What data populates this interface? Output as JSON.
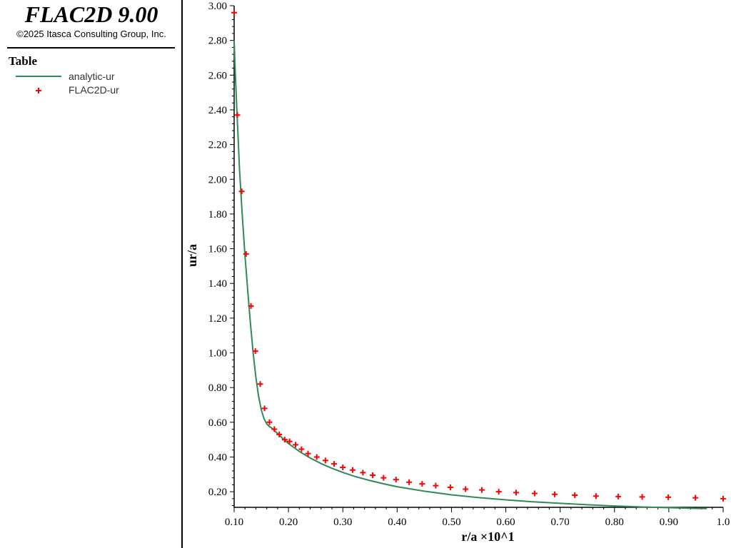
{
  "app": {
    "title": "FLAC2D 9.00",
    "copyright": "©2025 Itasca Consulting Group, Inc."
  },
  "legend": {
    "title": "Table",
    "items": [
      {
        "label": "analytic-ur",
        "type": "line",
        "color": "#2e8b57"
      },
      {
        "label": "FLAC2D-ur",
        "type": "marker",
        "color": "#ff0000"
      }
    ]
  },
  "chart_data": {
    "type": "line",
    "xlabel": "r/a ×10^1",
    "ylabel": "ur/a",
    "xlim": [
      0.1,
      1.0
    ],
    "ylim": [
      0.11,
      3.0
    ],
    "xticks": [
      "0.10",
      "0.20",
      "0.30",
      "0.40",
      "0.50",
      "0.60",
      "0.70",
      "0.80",
      "0.90",
      "1.0"
    ],
    "yticks": [
      "0.20",
      "0.40",
      "0.60",
      "0.80",
      "1.00",
      "1.20",
      "1.40",
      "1.60",
      "1.80",
      "2.00",
      "2.20",
      "2.40",
      "2.60",
      "2.80",
      "3.00"
    ],
    "grid": false,
    "legend_position": "left-panel",
    "series": [
      {
        "name": "analytic-ur",
        "style": "line",
        "color": "#2e8b57",
        "x": [
          0.1,
          0.102,
          0.105,
          0.11,
          0.115,
          0.12,
          0.125,
          0.13,
          0.135,
          0.14,
          0.145,
          0.15,
          0.155,
          0.16,
          0.165,
          0.17,
          0.18,
          0.19,
          0.2,
          0.22,
          0.24,
          0.26,
          0.28,
          0.3,
          0.32,
          0.35,
          0.38,
          0.4,
          0.45,
          0.5,
          0.55,
          0.6,
          0.65,
          0.7,
          0.75,
          0.8,
          0.85,
          0.9,
          0.95,
          0.97
        ],
        "y": [
          2.8,
          2.62,
          2.4,
          2.05,
          1.79,
          1.56,
          1.36,
          1.17,
          1.0,
          0.86,
          0.75,
          0.67,
          0.62,
          0.59,
          0.575,
          0.565,
          0.535,
          0.505,
          0.478,
          0.432,
          0.394,
          0.362,
          0.335,
          0.311,
          0.29,
          0.264,
          0.242,
          0.229,
          0.203,
          0.182,
          0.166,
          0.153,
          0.142,
          0.133,
          0.125,
          0.118,
          0.112,
          0.108,
          0.104,
          0.103
        ]
      },
      {
        "name": "FLAC2D-ur",
        "style": "marker",
        "color": "#ff0000",
        "x": [
          0.1,
          0.106,
          0.114,
          0.122,
          0.131,
          0.139,
          0.148,
          0.156,
          0.165,
          0.174,
          0.183,
          0.193,
          0.202,
          0.213,
          0.224,
          0.236,
          0.252,
          0.268,
          0.284,
          0.3,
          0.318,
          0.337,
          0.355,
          0.375,
          0.398,
          0.422,
          0.446,
          0.471,
          0.498,
          0.526,
          0.556,
          0.587,
          0.619,
          0.653,
          0.69,
          0.727,
          0.766,
          0.807,
          0.851,
          0.899,
          0.949,
          1.0
        ],
        "y": [
          2.96,
          2.37,
          1.93,
          1.57,
          1.27,
          1.01,
          0.82,
          0.68,
          0.6,
          0.56,
          0.53,
          0.5,
          0.49,
          0.47,
          0.445,
          0.42,
          0.4,
          0.38,
          0.36,
          0.34,
          0.325,
          0.31,
          0.295,
          0.28,
          0.27,
          0.255,
          0.245,
          0.235,
          0.225,
          0.215,
          0.21,
          0.2,
          0.195,
          0.19,
          0.185,
          0.18,
          0.175,
          0.172,
          0.17,
          0.168,
          0.165,
          0.16
        ]
      }
    ]
  }
}
